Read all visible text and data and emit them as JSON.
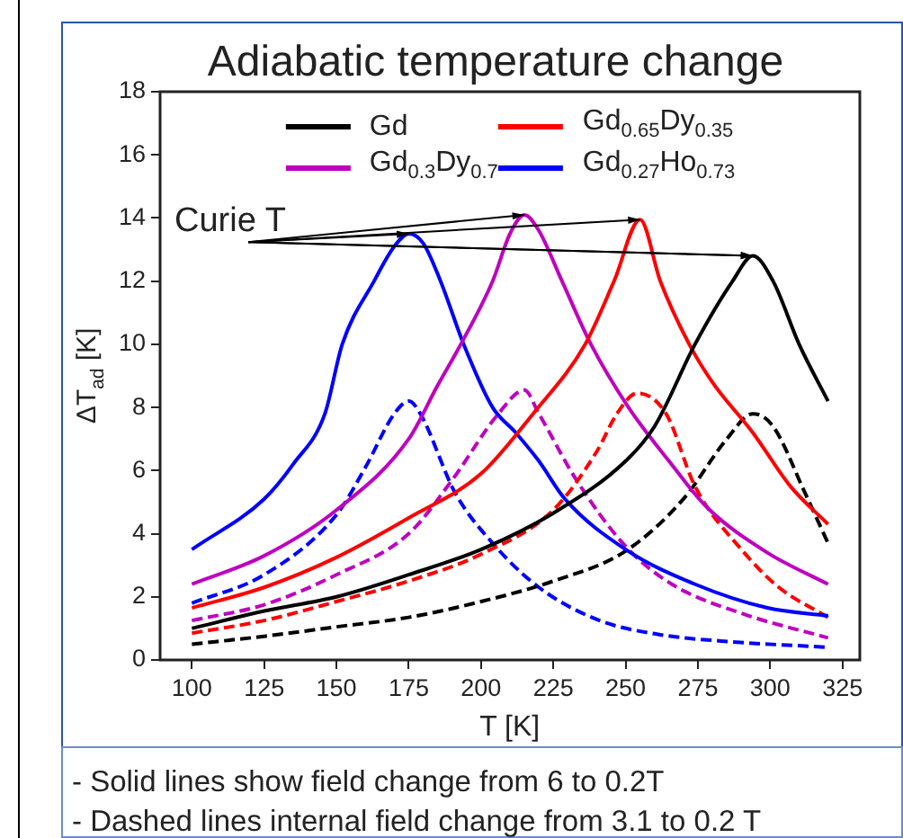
{
  "chart_data": {
    "type": "line",
    "title": "Adiabatic temperature change",
    "xlabel": "T [K]",
    "ylabel": "ΔT$_{ad}$ [K]",
    "xlim": [
      89,
      331
    ],
    "xticks": [
      100,
      125,
      150,
      175,
      200,
      225,
      250,
      275,
      300,
      325
    ],
    "ylim": [
      0,
      18
    ],
    "yticks": [
      0,
      2,
      4,
      6,
      8,
      10,
      12,
      14,
      16,
      18
    ],
    "grid": false,
    "legend": "top",
    "marker": "none",
    "series": [
      {
        "name": "Gd",
        "color": "#000000",
        "line_style": "solid",
        "x": [
          100,
          125,
          150,
          175,
          200,
          225,
          250,
          260,
          274,
          287,
          294,
          301,
          310,
          320
        ],
        "values": [
          1.0,
          1.55,
          2.0,
          2.7,
          3.5,
          4.65,
          6.3,
          7.4,
          10.0,
          12.0,
          12.8,
          12.0,
          10.0,
          8.2
        ]
      },
      {
        "name": "Gd$_{0.65}$Dy$_{0.35}$",
        "color": "#ff0000",
        "line_style": "solid",
        "x": [
          100,
          125,
          150,
          175,
          200,
          218,
          236,
          246,
          255,
          262,
          272,
          280,
          294,
          307,
          320
        ],
        "values": [
          1.65,
          2.3,
          3.25,
          4.5,
          5.9,
          7.8,
          10.0,
          12.0,
          13.95,
          12.0,
          10.0,
          8.8,
          7.2,
          5.5,
          4.3
        ]
      },
      {
        "name": "Gd$_{0.3}$Dy$_{0.7}$",
        "color": "#bf00bf",
        "line_style": "solid",
        "x": [
          100,
          125,
          150,
          175,
          185,
          193,
          204,
          210,
          215,
          220,
          228,
          238,
          251,
          265,
          278,
          299,
          320
        ],
        "values": [
          2.4,
          3.3,
          4.75,
          7.0,
          8.7,
          10.0,
          12.0,
          13.5,
          14.1,
          13.6,
          12.0,
          10.0,
          8.0,
          6.3,
          4.85,
          3.4,
          2.4
        ]
      },
      {
        "name": "Gd$_{0.27}$Ho$_{0.73}$",
        "color": "#0000ff",
        "line_style": "solid",
        "x": [
          100,
          125,
          135,
          146,
          152,
          163,
          170,
          175,
          180,
          186,
          194,
          204,
          212,
          220,
          229,
          250,
          274,
          299,
          320
        ],
        "values": [
          3.5,
          5.1,
          6.2,
          7.8,
          10.0,
          12.0,
          13.1,
          13.5,
          13.2,
          12.0,
          10.0,
          8.0,
          7.2,
          6.3,
          5.1,
          3.5,
          2.4,
          1.65,
          1.4
        ]
      },
      {
        "color": "#000000",
        "line_style": "dashed",
        "x": [
          100,
          125,
          150,
          175,
          200,
          225,
          250,
          270,
          285,
          294,
          301,
          312,
          320
        ],
        "values": [
          0.5,
          0.75,
          1.05,
          1.35,
          1.85,
          2.5,
          3.45,
          5.1,
          7.0,
          7.8,
          7.4,
          5.3,
          3.7
        ]
      },
      {
        "color": "#ff0000",
        "line_style": "dashed",
        "x": [
          100,
          125,
          150,
          175,
          200,
          225,
          240,
          247,
          254,
          264,
          274,
          291,
          303,
          320
        ],
        "values": [
          0.85,
          1.25,
          1.85,
          2.5,
          3.35,
          4.75,
          6.6,
          7.8,
          8.45,
          7.8,
          5.5,
          3.4,
          2.3,
          1.35
        ]
      },
      {
        "color": "#bf00bf",
        "line_style": "dashed",
        "x": [
          100,
          125,
          150,
          175,
          190,
          206,
          215,
          220,
          233,
          250,
          266,
          291,
          320
        ],
        "values": [
          1.25,
          1.75,
          2.7,
          4.0,
          5.7,
          7.8,
          8.55,
          7.8,
          5.7,
          3.6,
          2.4,
          1.45,
          0.7
        ]
      },
      {
        "color": "#0000ff",
        "line_style": "dashed",
        "x": [
          100,
          125,
          150,
          160,
          170,
          175,
          179,
          191,
          204,
          220,
          241,
          262,
          283,
          320
        ],
        "values": [
          1.8,
          2.7,
          4.6,
          6.1,
          7.8,
          8.2,
          7.8,
          5.3,
          3.7,
          2.3,
          1.25,
          0.8,
          0.6,
          0.4
        ]
      }
    ],
    "annotations": [
      {
        "text": "Curie T",
        "x": 294,
        "y": 12.8
      },
      "- Solid lines show field change from 6 to 0.2T",
      "- Dashed lines internal field change from 3.1 to 0.2 T"
    ]
  }
}
